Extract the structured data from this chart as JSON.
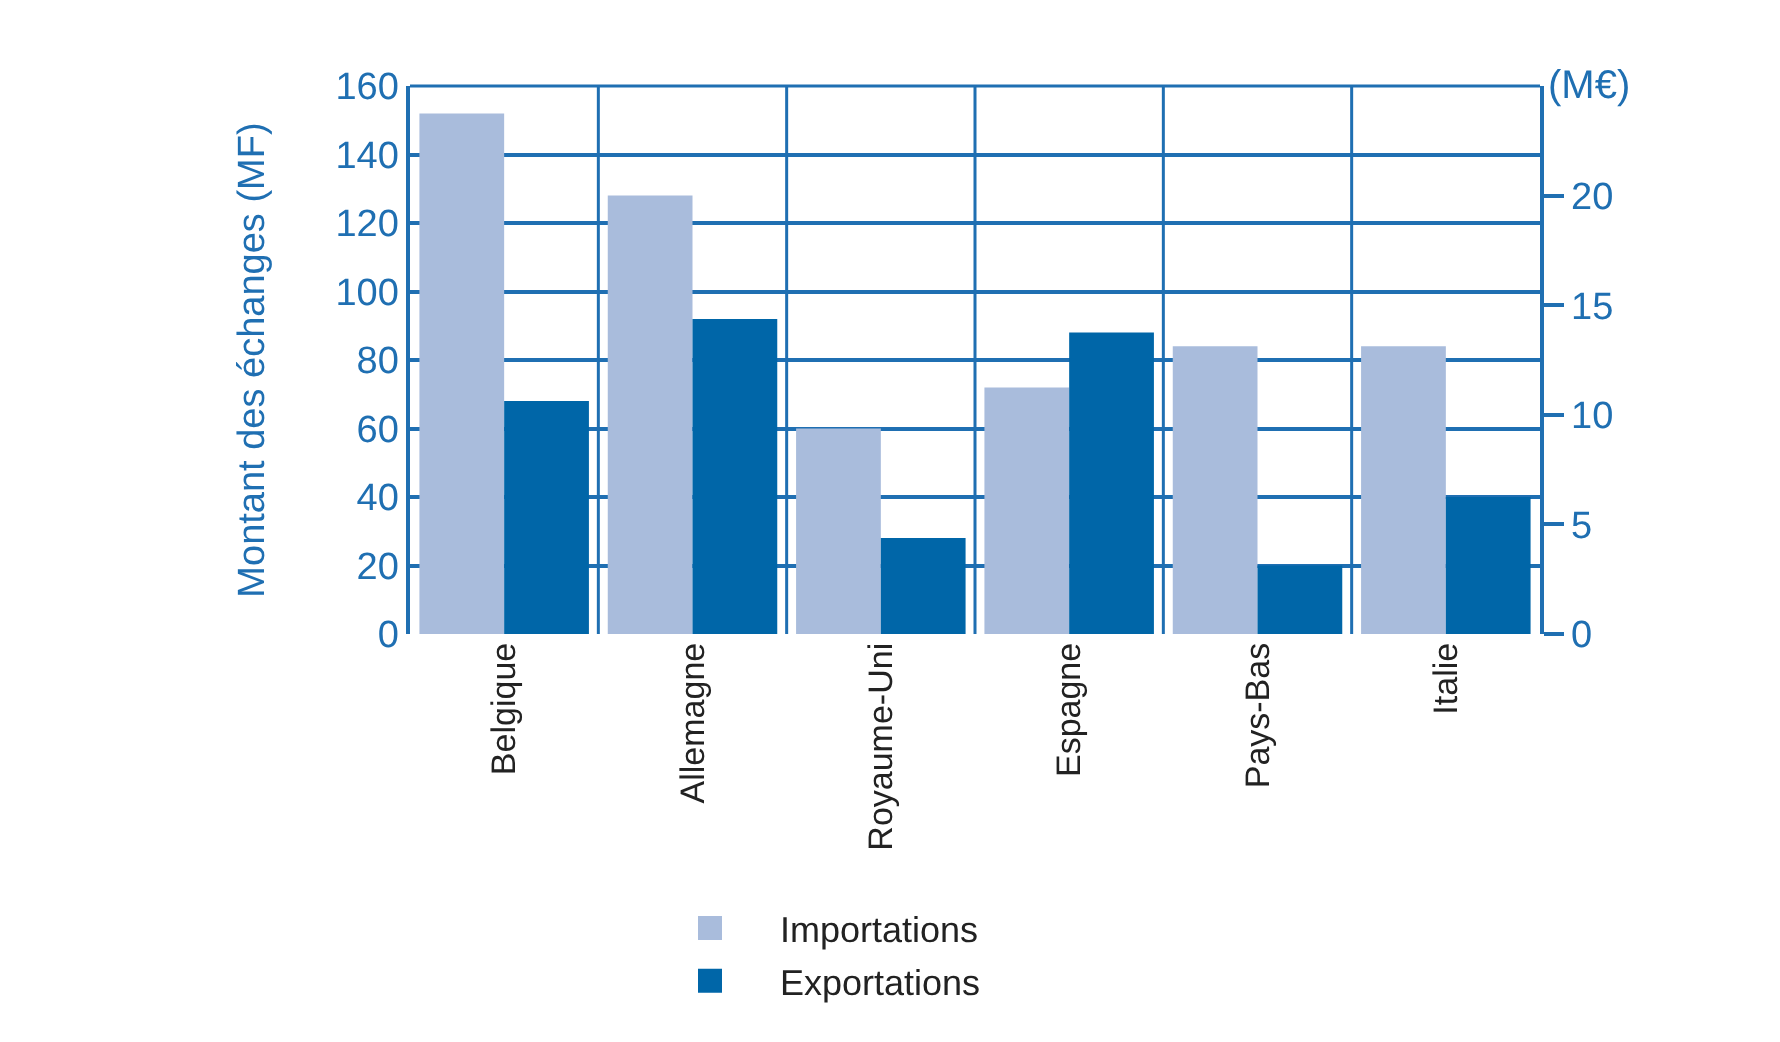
{
  "chart_data": {
    "type": "bar",
    "ylabel": "Montant des échanges (MF)",
    "y2label": "(M€)",
    "categories": [
      "Belgique",
      "Allemagne",
      "Royaume-Uni",
      "Espagne",
      "Pays-Bas",
      "Italie"
    ],
    "series": [
      {
        "name": "Importations",
        "color": "#a9bcdc",
        "values": [
          152,
          128,
          60,
          72,
          84,
          84
        ]
      },
      {
        "name": "Exportations",
        "color": "#0066a8",
        "values": [
          68,
          92,
          28,
          88,
          20,
          40
        ]
      }
    ],
    "ylim": [
      0,
      160
    ],
    "yticks": [
      0,
      20,
      40,
      60,
      80,
      100,
      120,
      140,
      160
    ],
    "y2lim": [
      0,
      25
    ],
    "y2ticks": [
      0,
      5,
      10,
      15,
      20
    ],
    "grid": true,
    "legend": "bottom"
  }
}
